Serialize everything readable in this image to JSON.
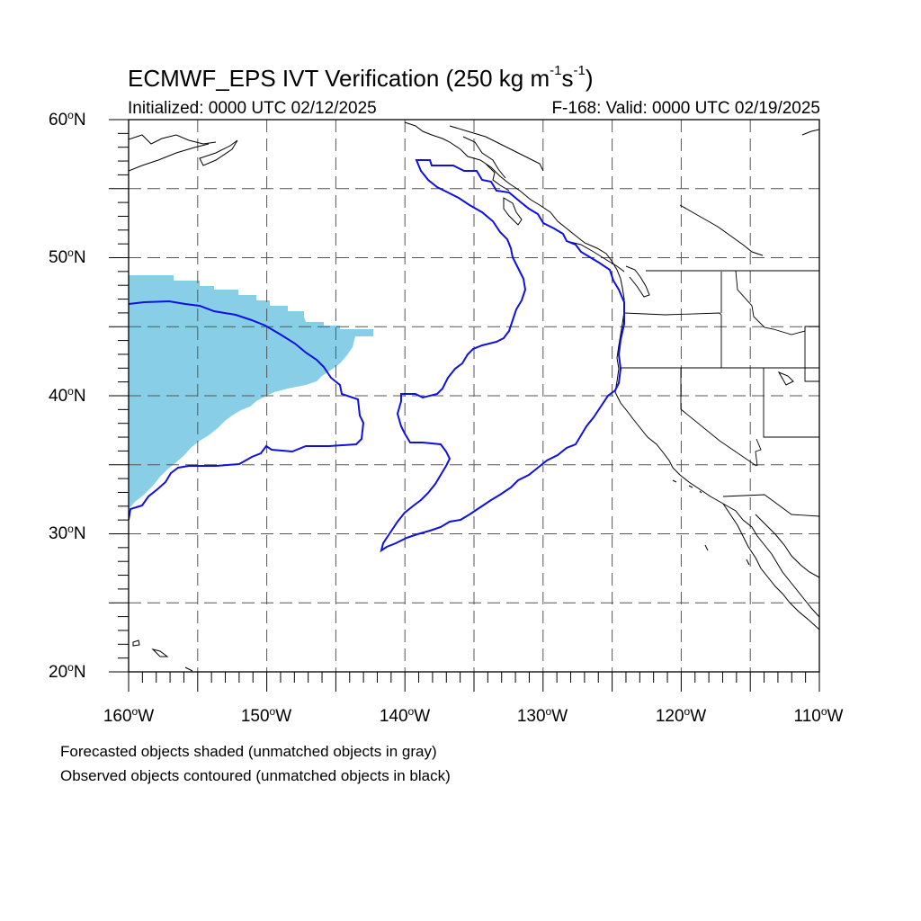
{
  "title": {
    "prefix": "ECMWF_EPS IVT Verification (250 kg m",
    "exp1": "-1",
    "mid": "s",
    "exp2": "-1",
    "suffix": ")"
  },
  "subtitle": {
    "initialized": "Initialized: 0000 UTC 02/12/2025",
    "valid": "F-168: Valid: 0000 UTC 02/19/2025"
  },
  "lat_labels": [
    {
      "value": "60",
      "hemi": "N"
    },
    {
      "value": "50",
      "hemi": "N"
    },
    {
      "value": "40",
      "hemi": "N"
    },
    {
      "value": "30",
      "hemi": "N"
    },
    {
      "value": "20",
      "hemi": "N"
    }
  ],
  "lon_labels": [
    {
      "value": "160",
      "hemi": "W"
    },
    {
      "value": "150",
      "hemi": "W"
    },
    {
      "value": "140",
      "hemi": "W"
    },
    {
      "value": "130",
      "hemi": "W"
    },
    {
      "value": "120",
      "hemi": "W"
    },
    {
      "value": "110",
      "hemi": "W"
    }
  ],
  "footnotes": [
    "Forecasted objects shaded (unmatched objects in gray)",
    "Observed objects contoured (unmatched objects in black)"
  ],
  "colors": {
    "forecast_fill": "#87CEE6",
    "observed_contour": "#1010E0",
    "coastline": "#000000",
    "grid": "#555555"
  },
  "map": {
    "lon_range": [
      -160,
      -110
    ],
    "lat_range": [
      20,
      60
    ],
    "grid_lon_step": 5,
    "grid_lat_step": 5,
    "grid_style": "dashed"
  }
}
